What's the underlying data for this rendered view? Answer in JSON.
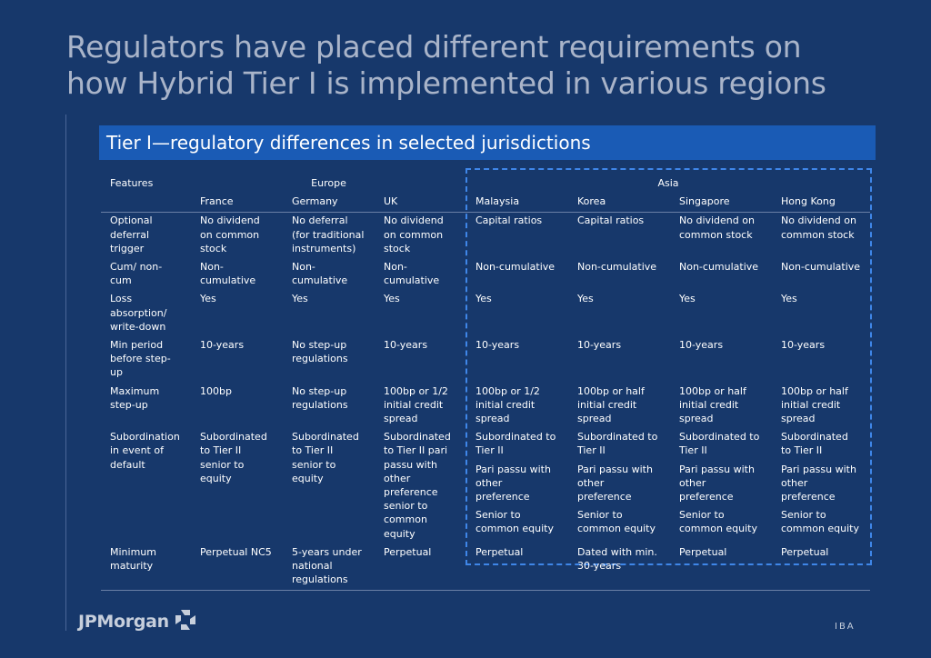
{
  "title": {
    "line1": "Regulators have placed different requirements on",
    "line2": "how Hybrid Tier I is implemented in various regions"
  },
  "banner": "Tier I—regulatory differences in selected jurisdictions",
  "table": {
    "feature_header": "Features",
    "groups": {
      "europe": "Europe",
      "asia": "Asia"
    },
    "countries": [
      "France",
      "Germany",
      "UK",
      "Malaysia",
      "Korea",
      "Singapore",
      "Hong Kong"
    ],
    "rows": [
      {
        "feature": "Optional deferral trigger",
        "cells": [
          "No dividend on common stock",
          "No deferral (for traditional instruments)",
          "No dividend on common stock",
          "Capital ratios",
          "Capital ratios",
          "No dividend on common stock",
          "No dividend on common stock"
        ]
      },
      {
        "feature": "Cum/ non-cum",
        "cells": [
          "Non-cumulative",
          "Non-cumulative",
          "Non-cumulative",
          "Non-cumulative",
          "Non-cumulative",
          "Non-cumulative",
          "Non-cumulative"
        ]
      },
      {
        "feature": "Loss absorption/ write-down",
        "cells": [
          "Yes",
          "Yes",
          "Yes",
          "Yes",
          "Yes",
          "Yes",
          "Yes"
        ]
      },
      {
        "feature": "Min period before step-up",
        "cells": [
          "10-years",
          "No step-up regulations",
          "10-years",
          "10-years",
          "10-years",
          "10-years",
          "10-years"
        ]
      },
      {
        "feature": "Maximum step-up",
        "cells": [
          "100bp",
          "No step-up regulations",
          "100bp or 1/2 initial credit spread",
          "100bp or 1/2 initial credit spread",
          "100bp or half initial credit spread",
          "100bp or half initial credit spread",
          "100bp or half initial credit spread"
        ]
      },
      {
        "feature": "Subordination in event of default",
        "cells": [
          "Subordinated to Tier II senior to equity",
          "Subordinated to Tier II senior to equity",
          "Subordinated to Tier II pari passu with other preference senior to common equity"
        ],
        "asia_lines": [
          "Subordinated to Tier II",
          "Pari passu with other preference",
          "Senior to common equity"
        ]
      },
      {
        "feature": "Minimum maturity",
        "cells": [
          "Perpetual NC5",
          "5-years under national regulations",
          "Perpetual",
          "Perpetual",
          "Dated with min. 30-years",
          "Perpetual",
          "Perpetual"
        ]
      }
    ]
  },
  "footer": {
    "logo_text": "JPMorgan",
    "code": "IBA"
  },
  "colors": {
    "background": "#17386b",
    "banner": "#1a5bb5",
    "title": "#a9b4c9",
    "dash": "#3f86e8"
  },
  "icons": {
    "logo_mark": "jpmorgan-octagon-icon"
  }
}
